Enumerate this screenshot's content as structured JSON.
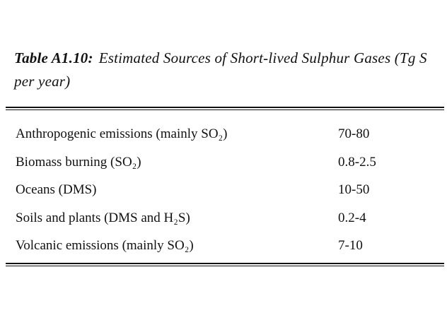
{
  "caption": {
    "label": "Table A1.10:",
    "text": "Estimated Sources of Short-lived Sulphur Gases (Tg S per year)"
  },
  "table": {
    "rows": [
      [
        "Anthropogenic emissions (mainly SO₂)",
        "70-80"
      ],
      [
        "Biomass burning (SO₂)",
        "0.8-2.5"
      ],
      [
        "Oceans (DMS)",
        "10-50"
      ],
      [
        "Soils and plants (DMS and H₂S)",
        "0.2-4"
      ],
      [
        "Volcanic emissions (mainly SO₂)",
        "7-10"
      ]
    ]
  }
}
